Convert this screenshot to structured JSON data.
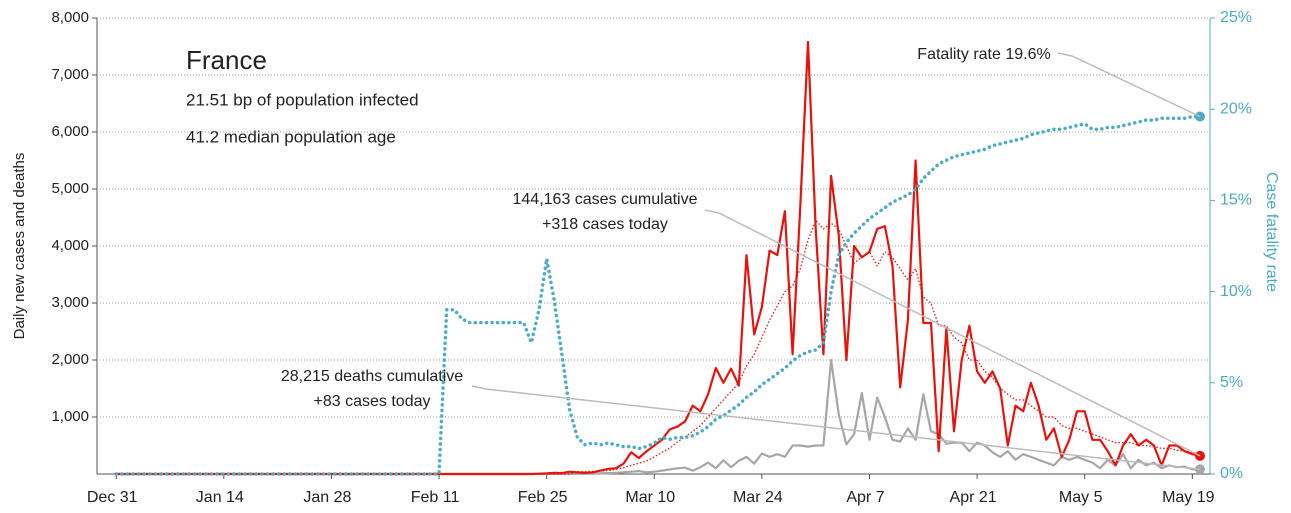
{
  "chart_data": {
    "type": "line",
    "title": "France",
    "subtitle": [
      "21.51 bp of population infected",
      "41.2 median population age"
    ],
    "ylabel": "Daily new cases and deaths",
    "y2label": "Case fatality rate",
    "annotations": [
      [
        "Fatality rate 19.6%"
      ],
      [
        "144,163 cases cumulative",
        "+318 cases today"
      ],
      [
        "28,215 deaths cumulative",
        "+83 cases today"
      ]
    ],
    "categories": [
      "Dec 31",
      null,
      null,
      null,
      null,
      null,
      null,
      null,
      null,
      null,
      null,
      null,
      null,
      null,
      "Jan 14",
      null,
      null,
      null,
      null,
      null,
      null,
      null,
      null,
      null,
      null,
      null,
      null,
      null,
      "Jan 28",
      null,
      null,
      null,
      null,
      null,
      null,
      null,
      null,
      null,
      null,
      null,
      null,
      null,
      "Feb 11",
      null,
      null,
      null,
      null,
      null,
      null,
      null,
      null,
      null,
      null,
      null,
      null,
      null,
      "Feb 25",
      null,
      null,
      null,
      null,
      null,
      null,
      null,
      null,
      null,
      null,
      null,
      null,
      null,
      "Mar 10",
      null,
      null,
      null,
      null,
      null,
      null,
      null,
      null,
      null,
      null,
      null,
      null,
      null,
      "Mar 24",
      null,
      null,
      null,
      null,
      null,
      null,
      null,
      null,
      null,
      null,
      null,
      null,
      null,
      "Apr 7",
      null,
      null,
      null,
      null,
      null,
      null,
      null,
      null,
      null,
      null,
      null,
      null,
      null,
      "Apr 21",
      null,
      null,
      null,
      null,
      null,
      null,
      null,
      null,
      null,
      null,
      null,
      null,
      null,
      "May 5",
      null,
      null,
      null,
      null,
      null,
      null,
      null,
      null,
      null,
      null,
      null,
      null,
      null,
      "May 19",
      null
    ],
    "ylim": [
      0,
      8000
    ],
    "yticks": [
      {
        "value": 1000,
        "label": "1,000"
      },
      {
        "value": 2000,
        "label": "2,000"
      },
      {
        "value": 3000,
        "label": "3,000"
      },
      {
        "value": 4000,
        "label": "4,000"
      },
      {
        "value": 5000,
        "label": "5,000"
      },
      {
        "value": 6000,
        "label": "6,000"
      },
      {
        "value": 7000,
        "label": "7,000"
      },
      {
        "value": 8000,
        "label": "8,000"
      }
    ],
    "y2lim": [
      0,
      25
    ],
    "y2ticks": [
      {
        "value": 0,
        "label": "0%"
      },
      {
        "value": 5,
        "label": "5%"
      },
      {
        "value": 10,
        "label": "10%"
      },
      {
        "value": 15,
        "label": "15%"
      },
      {
        "value": 20,
        "label": "20%"
      },
      {
        "value": 25,
        "label": "25%"
      }
    ],
    "grid": true,
    "series": [
      {
        "color": "#a6a6a6",
        "style": "solid",
        "values": [
          0,
          0,
          0,
          0,
          0,
          0,
          0,
          0,
          0,
          0,
          0,
          0,
          0,
          0,
          0,
          0,
          0,
          0,
          0,
          0,
          0,
          0,
          0,
          0,
          0,
          0,
          0,
          0,
          0,
          0,
          0,
          0,
          0,
          0,
          0,
          0,
          0,
          0,
          0,
          0,
          0,
          0,
          0,
          0,
          0,
          0,
          0,
          0,
          0,
          0,
          0,
          0,
          0,
          0,
          0,
          0,
          0,
          0,
          0,
          0,
          2,
          3,
          5,
          10,
          15,
          20,
          30,
          40,
          50,
          30,
          40,
          60,
          80,
          100,
          110,
          60,
          120,
          200,
          100,
          240,
          120,
          230,
          300,
          180,
          360,
          300,
          350,
          300,
          500,
          500,
          480,
          500,
          500,
          2000,
          1050,
          520,
          700,
          1420,
          600,
          1340,
          1000,
          600,
          570,
          800,
          600,
          1400,
          750,
          700,
          530,
          550,
          550,
          400,
          550,
          500,
          380,
          300,
          400,
          250,
          350,
          300,
          250,
          200,
          150,
          300,
          250,
          300,
          250,
          200,
          100,
          250,
          150,
          350,
          100,
          250,
          150,
          200,
          100,
          150,
          120,
          130,
          80,
          83
        ]
      },
      {
        "color": "#e8120c",
        "style": "dotted",
        "values": [
          0,
          0,
          0,
          0,
          0,
          0,
          0,
          0,
          0,
          0,
          0,
          0,
          0,
          0,
          0,
          0,
          0,
          0,
          0,
          0,
          0,
          0,
          0,
          0,
          0,
          0,
          0,
          0,
          0,
          0,
          0,
          0,
          0,
          0,
          0,
          0,
          0,
          0,
          0,
          0,
          0,
          0,
          0,
          0,
          0,
          0,
          0,
          0,
          0,
          0,
          0,
          0,
          0,
          0,
          0,
          0,
          0,
          0,
          0,
          0,
          40,
          40,
          45,
          50,
          60,
          80,
          110,
          150,
          190,
          230,
          300,
          380,
          450,
          560,
          650,
          750,
          850,
          1000,
          1150,
          1300,
          1450,
          1600,
          1900,
          2100,
          2400,
          2700,
          2950,
          3200,
          3300,
          3600,
          4100,
          4450,
          4300,
          4400,
          4300,
          4000,
          3700,
          3800,
          3900,
          3650,
          3900,
          3800,
          3600,
          3400,
          3600,
          3100,
          3000,
          2600,
          2600,
          2400,
          2300,
          2000,
          2000,
          1800,
          1700,
          1500,
          1400,
          1300,
          1300,
          1200,
          1100,
          1000,
          1000,
          850,
          800,
          800,
          750,
          700,
          650,
          600,
          550,
          550,
          550,
          500,
          500,
          480,
          450,
          450,
          420,
          400,
          380,
          350
        ]
      },
      {
        "color": "#e8120c",
        "style": "solid",
        "values": [
          0,
          0,
          0,
          0,
          0,
          0,
          0,
          0,
          0,
          0,
          0,
          0,
          0,
          0,
          0,
          0,
          0,
          0,
          0,
          0,
          0,
          0,
          0,
          0,
          0,
          0,
          0,
          0,
          0,
          0,
          0,
          0,
          0,
          0,
          0,
          0,
          0,
          0,
          0,
          0,
          0,
          0,
          0,
          0,
          0,
          0,
          0,
          0,
          0,
          0,
          0,
          0,
          0,
          0,
          0,
          5,
          10,
          20,
          15,
          40,
          30,
          20,
          30,
          60,
          90,
          100,
          180,
          380,
          280,
          400,
          500,
          600,
          780,
          830,
          920,
          1200,
          1100,
          1400,
          1860,
          1600,
          1850,
          1550,
          3840,
          2450,
          2930,
          3920,
          3840,
          4610,
          2100,
          4700,
          7580,
          4300,
          2100,
          5230,
          4200,
          2000,
          4000,
          3800,
          3900,
          4300,
          4350,
          3650,
          1520,
          2700,
          5500,
          2650,
          2650,
          400,
          2550,
          750,
          2000,
          2600,
          1800,
          1600,
          1800,
          1500,
          500,
          1200,
          1100,
          1600,
          1200,
          600,
          800,
          300,
          600,
          1100,
          1100,
          600,
          600,
          400,
          150,
          500,
          700,
          500,
          600,
          500,
          150,
          500,
          500,
          400,
          350,
          318
        ]
      },
      {
        "color": "#4bacc6",
        "style": "dotted",
        "axis": "y2",
        "values": [
          0,
          0,
          0,
          0,
          0,
          0,
          0,
          0,
          0,
          0,
          0,
          0,
          0,
          0,
          0,
          0,
          0,
          0,
          0,
          0,
          0,
          0,
          0,
          0,
          0,
          0,
          0,
          0,
          0,
          0,
          0,
          0,
          0,
          0,
          0,
          0,
          0,
          0,
          0,
          0,
          0,
          0,
          0,
          9,
          9,
          8.5,
          8.3,
          8.3,
          8.3,
          8.3,
          8.3,
          8.3,
          8.3,
          8.3,
          7.2,
          9,
          11.8,
          9.5,
          6.5,
          3.5,
          2,
          1.6,
          1.7,
          1.6,
          1.7,
          1.6,
          1.5,
          1.5,
          1.4,
          1.5,
          1.7,
          2,
          1.9,
          2,
          2,
          2.1,
          2.3,
          2.6,
          3,
          3.2,
          3.5,
          3.8,
          4.2,
          4.5,
          4.9,
          5.2,
          5.5,
          5.8,
          6.2,
          6.5,
          6.7,
          6.8,
          7.2,
          10,
          12,
          12.7,
          13.2,
          13.6,
          14,
          14.3,
          14.6,
          14.9,
          15.1,
          15.3,
          15.6,
          16.2,
          16.6,
          17,
          17.2,
          17.4,
          17.5,
          17.6,
          17.7,
          17.8,
          18,
          18.1,
          18.2,
          18.3,
          18.4,
          18.6,
          18.7,
          18.8,
          18.9,
          18.9,
          19,
          19.1,
          19.2,
          18.9,
          18.9,
          19,
          19,
          19.1,
          19.2,
          19.3,
          19.4,
          19.4,
          19.5,
          19.5,
          19.5,
          19.5,
          19.6,
          19.6
        ]
      }
    ]
  }
}
